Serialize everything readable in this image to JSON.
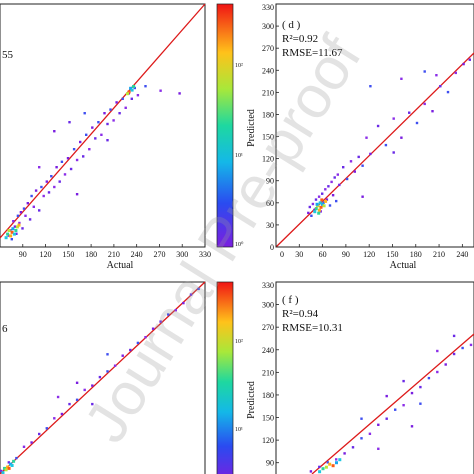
{
  "chart_data": [
    {
      "panel": "top-left",
      "type": "scatter",
      "xlabel": "Actual",
      "annotation_partial": "55",
      "xticks": [
        "90",
        "120",
        "150",
        "180",
        "210",
        "240",
        "270",
        "300",
        "330"
      ],
      "xlim": [
        60,
        330
      ],
      "ylim": [
        60,
        330
      ],
      "colorbar_ticks": [
        "10²",
        "10¹",
        "10⁰"
      ],
      "points": [
        [
          70,
          74
        ],
        [
          72,
          80
        ],
        [
          74,
          70
        ],
        [
          76,
          90
        ],
        [
          78,
          84
        ],
        [
          80,
          76
        ],
        [
          82,
          96
        ],
        [
          84,
          88
        ],
        [
          86,
          100
        ],
        [
          88,
          82
        ],
        [
          90,
          104
        ],
        [
          92,
          96
        ],
        [
          95,
          110
        ],
        [
          98,
          92
        ],
        [
          100,
          118
        ],
        [
          103,
          106
        ],
        [
          106,
          124
        ],
        [
          110,
          102
        ],
        [
          113,
          128
        ],
        [
          116,
          118
        ],
        [
          120,
          134
        ],
        [
          123,
          122
        ],
        [
          126,
          140
        ],
        [
          130,
          128
        ],
        [
          133,
          150
        ],
        [
          137,
          134
        ],
        [
          140,
          156
        ],
        [
          144,
          142
        ],
        [
          148,
          160
        ],
        [
          152,
          148
        ],
        [
          156,
          170
        ],
        [
          160,
          158
        ],
        [
          164,
          178
        ],
        [
          168,
          162
        ],
        [
          172,
          186
        ],
        [
          176,
          170
        ],
        [
          180,
          194
        ],
        [
          184,
          182
        ],
        [
          188,
          200
        ],
        [
          192,
          186
        ],
        [
          196,
          210
        ],
        [
          200,
          198
        ],
        [
          204,
          214
        ],
        [
          208,
          202
        ],
        [
          212,
          222
        ],
        [
          216,
          210
        ],
        [
          220,
          226
        ],
        [
          224,
          216
        ],
        [
          228,
          232
        ],
        [
          232,
          226
        ],
        [
          236,
          238
        ],
        [
          240,
          230
        ],
        [
          130,
          190
        ],
        [
          150,
          200
        ],
        [
          170,
          210
        ],
        [
          110,
          150
        ],
        [
          160,
          120
        ],
        [
          200,
          180
        ],
        [
          250,
          240
        ],
        [
          270,
          235
        ],
        [
          295,
          232
        ]
      ],
      "dense_points": [
        [
          66,
          72
        ],
        [
          68,
          76
        ],
        [
          70,
          80
        ],
        [
          72,
          74
        ],
        [
          74,
          78
        ],
        [
          75,
          82
        ],
        [
          77,
          76
        ],
        [
          79,
          80
        ],
        [
          81,
          84
        ],
        [
          83,
          86
        ],
        [
          228,
          234
        ],
        [
          230,
          238
        ],
        [
          232,
          236
        ],
        [
          234,
          240
        ],
        [
          226,
          232
        ]
      ]
    },
    {
      "panel": "top-right",
      "type": "scatter",
      "panel_label": "( d )",
      "r2": "R²=0.92",
      "rmse": "RMSE=11.67",
      "xlabel": "Actual",
      "ylabel": "Predicted",
      "xticks": [
        "0",
        "30",
        "60",
        "90",
        "120",
        "150",
        "180",
        "210",
        "240"
      ],
      "yticks": [
        "0",
        "30",
        "60",
        "90",
        "120",
        "150",
        "180",
        "210",
        "240",
        "270",
        "300",
        "330"
      ],
      "xlim": [
        0,
        255
      ],
      "ylim": [
        0,
        330
      ],
      "points": [
        [
          40,
          48
        ],
        [
          42,
          56
        ],
        [
          44,
          44
        ],
        [
          46,
          60
        ],
        [
          48,
          52
        ],
        [
          50,
          66
        ],
        [
          52,
          58
        ],
        [
          54,
          70
        ],
        [
          56,
          50
        ],
        [
          58,
          74
        ],
        [
          60,
          62
        ],
        [
          62,
          80
        ],
        [
          64,
          66
        ],
        [
          66,
          84
        ],
        [
          68,
          58
        ],
        [
          70,
          90
        ],
        [
          72,
          72
        ],
        [
          74,
          96
        ],
        [
          76,
          64
        ],
        [
          78,
          100
        ],
        [
          80,
          86
        ],
        [
          85,
          110
        ],
        [
          90,
          94
        ],
        [
          95,
          118
        ],
        [
          100,
          104
        ],
        [
          105,
          124
        ],
        [
          110,
          112
        ],
        [
          115,
          150
        ],
        [
          120,
          128
        ],
        [
          130,
          166
        ],
        [
          140,
          140
        ],
        [
          150,
          176
        ],
        [
          160,
          150
        ],
        [
          170,
          184
        ],
        [
          180,
          170
        ],
        [
          190,
          196
        ],
        [
          200,
          186
        ],
        [
          210,
          220
        ],
        [
          220,
          212
        ],
        [
          230,
          238
        ],
        [
          240,
          250
        ],
        [
          248,
          256
        ],
        [
          120,
          220
        ],
        [
          160,
          230
        ],
        [
          110,
          70
        ],
        [
          150,
          130
        ],
        [
          190,
          240
        ],
        [
          205,
          235
        ]
      ],
      "dense_points": [
        [
          48,
          50
        ],
        [
          50,
          54
        ],
        [
          52,
          58
        ],
        [
          54,
          52
        ],
        [
          56,
          56
        ],
        [
          58,
          60
        ],
        [
          55,
          62
        ],
        [
          53,
          48
        ],
        [
          60,
          58
        ],
        [
          62,
          64
        ],
        [
          57,
          66
        ],
        [
          51,
          60
        ]
      ]
    },
    {
      "panel": "bottom-left",
      "type": "scatter",
      "annotation_partial": "6",
      "points": [
        [
          60,
          66
        ],
        [
          70,
          78
        ],
        [
          80,
          84
        ],
        [
          90,
          100
        ],
        [
          100,
          106
        ],
        [
          110,
          118
        ],
        [
          120,
          126
        ],
        [
          130,
          140
        ],
        [
          140,
          146
        ],
        [
          150,
          160
        ],
        [
          160,
          166
        ],
        [
          170,
          180
        ],
        [
          180,
          186
        ],
        [
          190,
          198
        ],
        [
          200,
          206
        ],
        [
          210,
          214
        ],
        [
          220,
          228
        ],
        [
          230,
          236
        ],
        [
          240,
          246
        ],
        [
          250,
          254
        ],
        [
          260,
          266
        ],
        [
          270,
          276
        ],
        [
          280,
          286
        ],
        [
          290,
          292
        ],
        [
          300,
          302
        ],
        [
          310,
          314
        ],
        [
          320,
          322
        ],
        [
          135,
          170
        ],
        [
          160,
          190
        ],
        [
          180,
          160
        ],
        [
          200,
          230
        ]
      ],
      "dense_points": [
        [
          62,
          64
        ],
        [
          64,
          70
        ],
        [
          66,
          68
        ],
        [
          68,
          72
        ],
        [
          70,
          70
        ],
        [
          72,
          76
        ],
        [
          74,
          74
        ],
        [
          76,
          80
        ]
      ]
    },
    {
      "panel": "bottom-right",
      "type": "scatter",
      "panel_label": "( f )",
      "r2": "R²=0.94",
      "rmse": "RMSE=10.31",
      "ylabel": "Predicted",
      "yticks": [
        "90",
        "120",
        "150",
        "180",
        "210",
        "240",
        "270",
        "300",
        "330"
      ],
      "ylim": [
        75,
        330
      ],
      "points": [
        [
          60,
          80
        ],
        [
          70,
          86
        ],
        [
          80,
          92
        ],
        [
          90,
          96
        ],
        [
          100,
          104
        ],
        [
          110,
          112
        ],
        [
          120,
          124
        ],
        [
          130,
          130
        ],
        [
          140,
          142
        ],
        [
          150,
          150
        ],
        [
          160,
          162
        ],
        [
          170,
          168
        ],
        [
          180,
          184
        ],
        [
          190,
          192
        ],
        [
          200,
          204
        ],
        [
          210,
          212
        ],
        [
          220,
          222
        ],
        [
          230,
          236
        ],
        [
          240,
          244
        ],
        [
          250,
          248
        ],
        [
          150,
          180
        ],
        [
          170,
          200
        ],
        [
          190,
          170
        ],
        [
          210,
          240
        ],
        [
          180,
          140
        ],
        [
          230,
          260
        ],
        [
          120,
          150
        ],
        [
          140,
          110
        ]
      ],
      "dense_points": [
        [
          70,
          80
        ],
        [
          74,
          84
        ],
        [
          78,
          86
        ],
        [
          82,
          90
        ],
        [
          86,
          88
        ],
        [
          90,
          92
        ],
        [
          94,
          96
        ]
      ]
    }
  ],
  "watermark": "Journal Pre-proof"
}
